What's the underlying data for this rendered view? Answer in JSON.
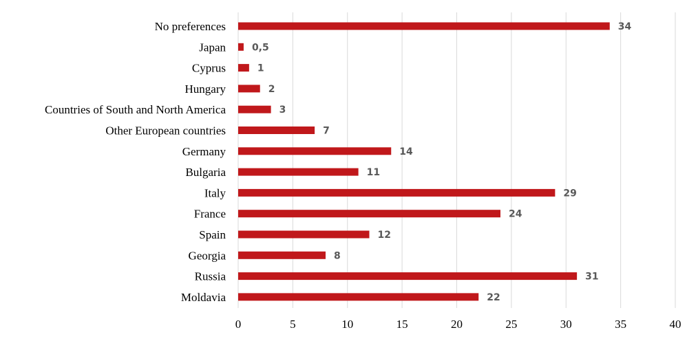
{
  "chart_data": {
    "type": "bar",
    "orientation": "horizontal",
    "categories": [
      "No preferences",
      "Japan",
      "Cyprus",
      "Hungary",
      "Countries of South and North America",
      "Other European countries",
      "Germany",
      "Bulgaria",
      "Italy",
      "France",
      "Spain",
      "Georgia",
      "Russia",
      "Moldavia"
    ],
    "values": [
      34,
      0.5,
      1,
      2,
      3,
      7,
      14,
      11,
      29,
      24,
      12,
      8,
      31,
      22
    ],
    "value_labels": [
      "34",
      "0,5",
      "1",
      "2",
      "3",
      "7",
      "14",
      "11",
      "29",
      "24",
      "12",
      "8",
      "31",
      "22"
    ],
    "xlim": [
      0,
      40
    ],
    "xticks": [
      0,
      5,
      10,
      15,
      20,
      25,
      30,
      35,
      40
    ],
    "grid": true,
    "legend": "none",
    "bar_color": "#c0181b",
    "label_color": "#595959",
    "grid_color": "#d9d9d9"
  }
}
